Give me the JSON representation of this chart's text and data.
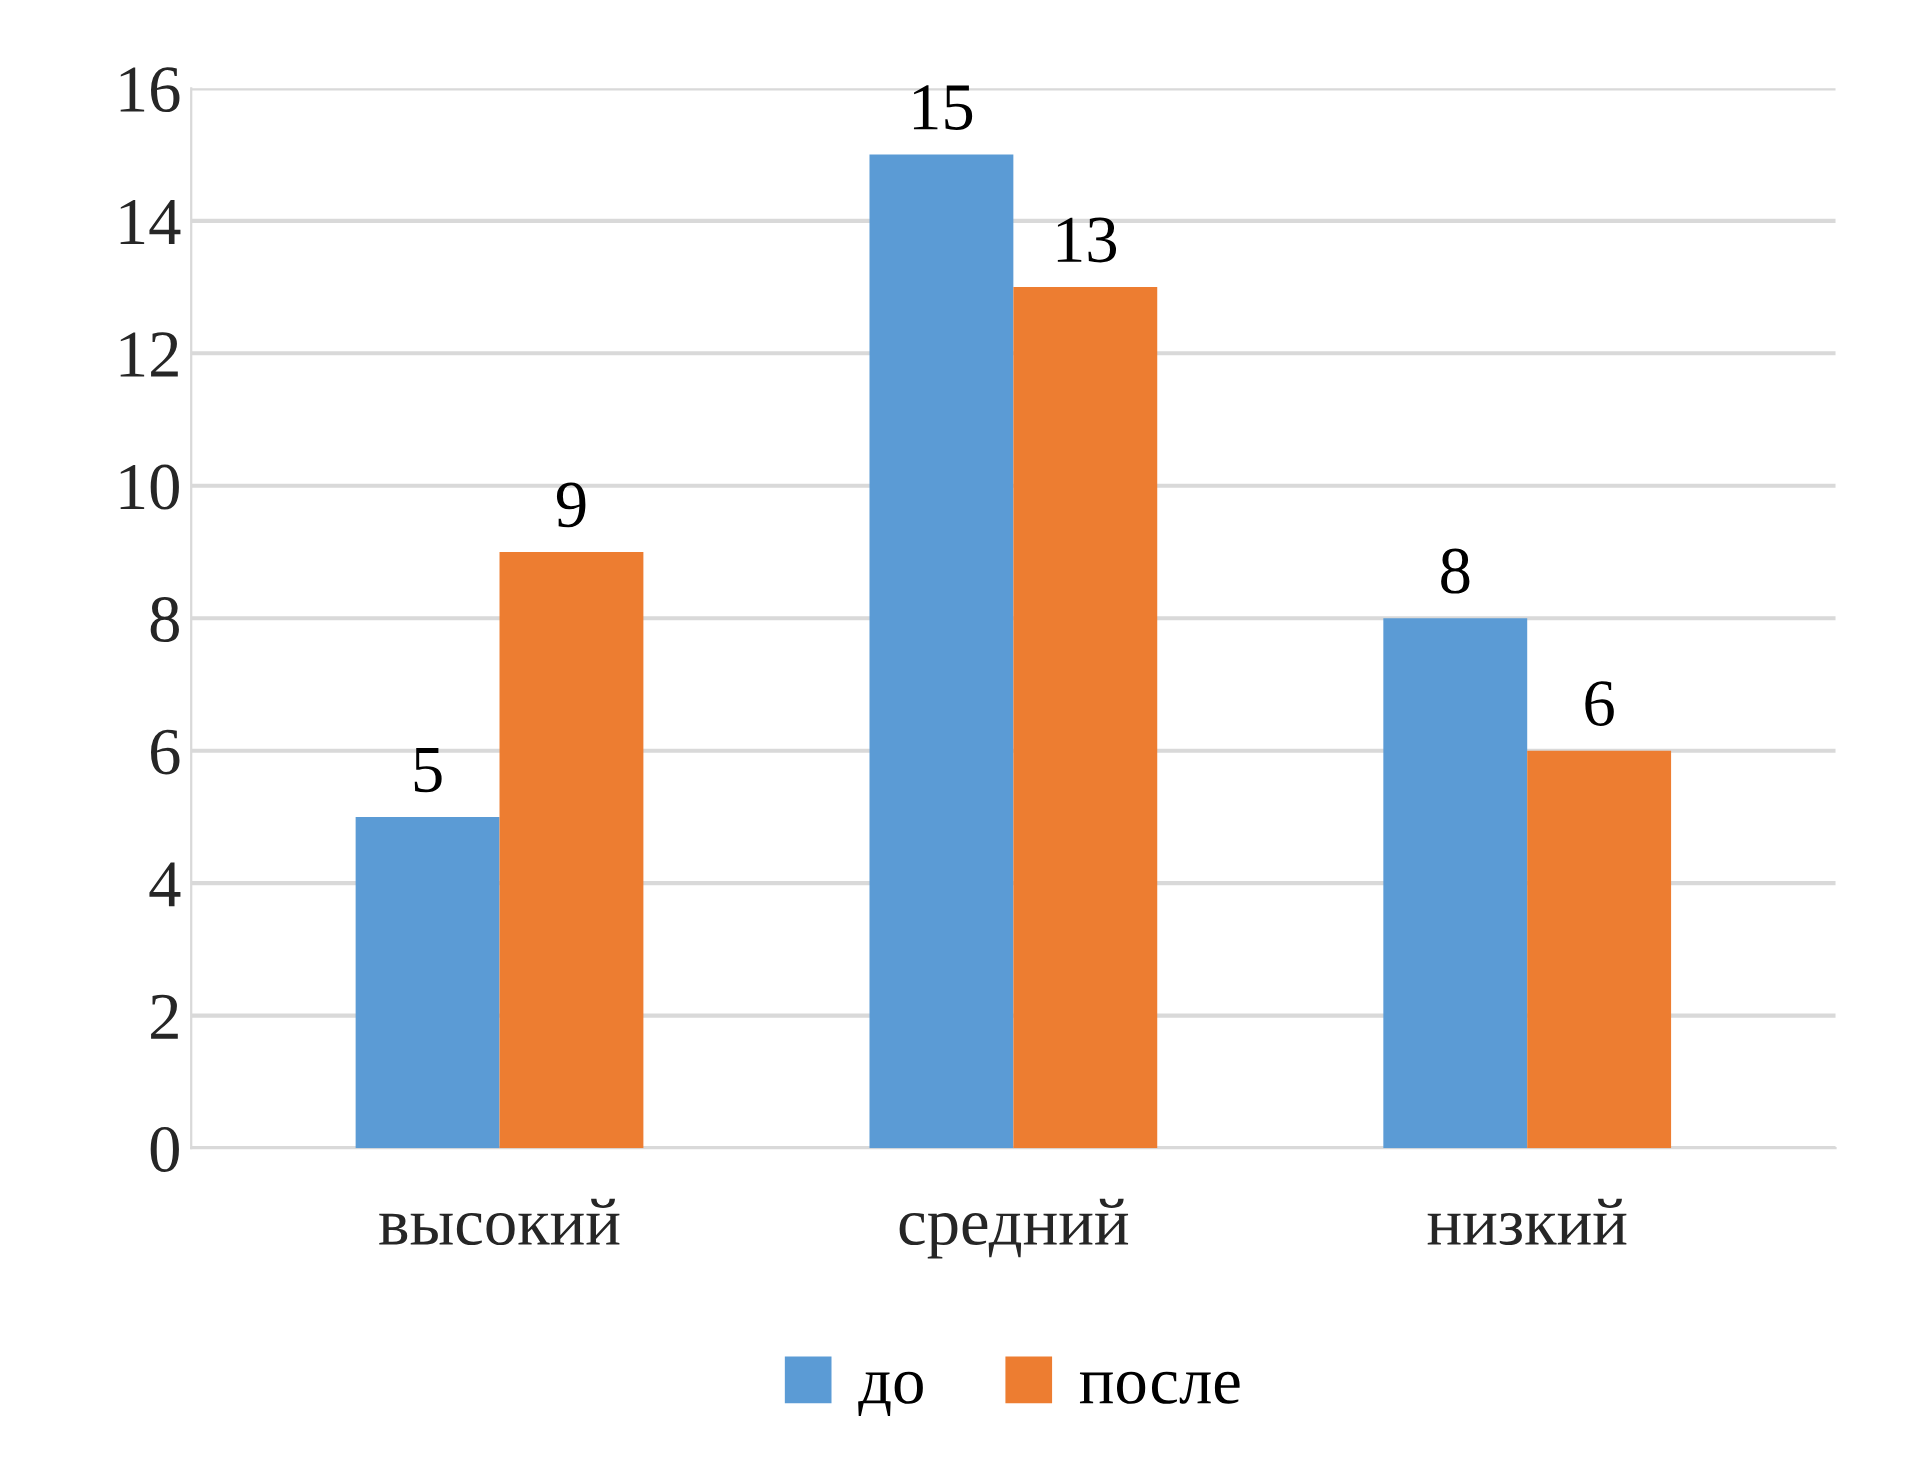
{
  "chart_data": {
    "type": "bar",
    "categories": [
      "высокий",
      "средний",
      "низкий"
    ],
    "series": [
      {
        "name": "до",
        "color": "#5b9bd5",
        "values": [
          5,
          15,
          8
        ]
      },
      {
        "name": "после",
        "color": "#ed7d31",
        "values": [
          9,
          13,
          6
        ]
      }
    ],
    "ylim": [
      0,
      16
    ],
    "yticks": [
      0,
      2,
      4,
      6,
      8,
      10,
      12,
      14,
      16
    ],
    "grid": "y",
    "legend": "bottom",
    "data_labels": true
  }
}
